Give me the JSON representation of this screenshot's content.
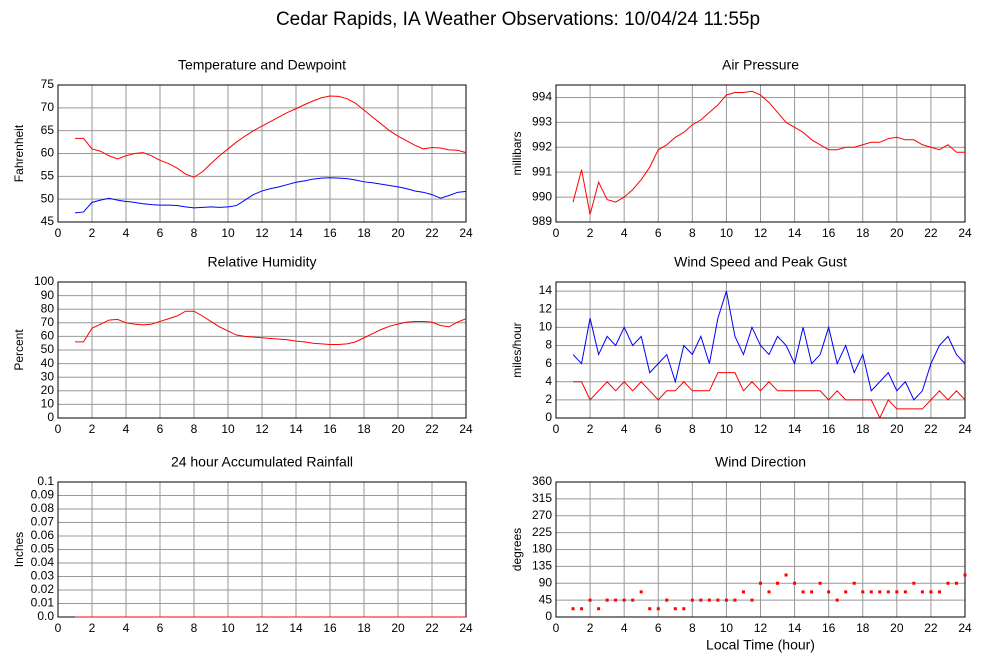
{
  "title": "Cedar Rapids, IA Weather Observations: 10/04/24 11:55p",
  "chart_data": [
    {
      "type": "line",
      "title": "Temperature and Dewpoint",
      "ylabel": "Fahrenheit",
      "x": [
        1,
        1.5,
        2,
        2.5,
        3,
        3.5,
        4,
        4.5,
        5,
        5.5,
        6,
        6.5,
        7,
        7.5,
        8,
        8.5,
        9,
        9.5,
        10,
        10.5,
        11,
        11.5,
        12,
        12.5,
        13,
        13.5,
        14,
        14.5,
        15,
        15.5,
        16,
        16.5,
        17,
        17.5,
        18,
        18.5,
        19,
        19.5,
        20,
        20.5,
        21,
        21.5,
        22,
        22.5,
        23,
        23.5,
        24
      ],
      "xlim": [
        0,
        24
      ],
      "xticks": [
        0,
        2,
        4,
        6,
        8,
        10,
        12,
        14,
        16,
        18,
        20,
        22,
        24
      ],
      "ylim": [
        45,
        75
      ],
      "yticks": [
        45,
        50,
        55,
        60,
        65,
        70,
        75
      ],
      "grid": true,
      "series": [
        {
          "color": "#ff0000",
          "values": [
            63.3,
            63.3,
            61,
            60.5,
            59.5,
            58.8,
            59.5,
            60,
            60.2,
            59.5,
            58.5,
            57.8,
            56.8,
            55.5,
            54.8,
            56,
            57.8,
            59.5,
            61,
            62.5,
            63.8,
            65,
            66,
            67,
            68,
            69,
            69.8,
            70.7,
            71.5,
            72.2,
            72.6,
            72.5,
            72,
            71,
            69.5,
            68,
            66.5,
            65,
            63.8,
            62.8,
            61.8,
            61,
            61.3,
            61.2,
            60.8,
            60.7,
            60.2
          ]
        },
        {
          "color": "#0000ff",
          "values": [
            47,
            47.2,
            49.3,
            49.8,
            50.2,
            49.8,
            49.5,
            49.3,
            49,
            48.8,
            48.7,
            48.7,
            48.6,
            48.3,
            48.1,
            48.2,
            48.3,
            48.2,
            48.3,
            48.6,
            49.8,
            51,
            51.8,
            52.3,
            52.7,
            53.2,
            53.7,
            54,
            54.4,
            54.6,
            54.7,
            54.6,
            54.5,
            54.2,
            53.8,
            53.6,
            53.3,
            53,
            52.7,
            52.3,
            51.8,
            51.5,
            51,
            50.2,
            50.8,
            51.5,
            51.7
          ]
        }
      ]
    },
    {
      "type": "line",
      "title": "Air Pressure",
      "ylabel": "millibars",
      "x": [
        1,
        1.5,
        2,
        2.5,
        3,
        3.5,
        4,
        4.5,
        5,
        5.5,
        6,
        6.5,
        7,
        7.5,
        8,
        8.5,
        9,
        9.5,
        10,
        10.5,
        11,
        11.5,
        12,
        12.5,
        13,
        13.5,
        14,
        14.5,
        15,
        15.5,
        16,
        16.5,
        17,
        17.5,
        18,
        18.5,
        19,
        19.5,
        20,
        20.5,
        21,
        21.5,
        22,
        22.5,
        23,
        23.5,
        24
      ],
      "xlim": [
        0,
        24
      ],
      "xticks": [
        0,
        2,
        4,
        6,
        8,
        10,
        12,
        14,
        16,
        18,
        20,
        22,
        24
      ],
      "ylim": [
        989,
        994.5
      ],
      "yticks": [
        989,
        990,
        991,
        992,
        993,
        994
      ],
      "grid": true,
      "series": [
        {
          "color": "#ff0000",
          "values": [
            989.8,
            991.1,
            989.3,
            990.6,
            989.9,
            989.8,
            990,
            990.3,
            990.7,
            991.2,
            991.9,
            992.1,
            992.4,
            992.6,
            992.9,
            993.1,
            993.4,
            993.7,
            994.1,
            994.2,
            994.2,
            994.25,
            994.1,
            993.8,
            993.4,
            993,
            992.8,
            992.6,
            992.3,
            992.1,
            991.9,
            991.9,
            992,
            992,
            992.1,
            992.2,
            992.2,
            992.35,
            992.4,
            992.3,
            992.3,
            992.1,
            992,
            991.9,
            992.1,
            991.8,
            991.8
          ]
        }
      ]
    },
    {
      "type": "line",
      "title": "Relative Humidity",
      "ylabel": "Percent",
      "x": [
        1,
        1.5,
        2,
        2.5,
        3,
        3.5,
        4,
        4.5,
        5,
        5.5,
        6,
        6.5,
        7,
        7.5,
        8,
        8.5,
        9,
        9.5,
        10,
        10.5,
        11,
        11.5,
        12,
        12.5,
        13,
        13.5,
        14,
        14.5,
        15,
        15.5,
        16,
        16.5,
        17,
        17.5,
        18,
        18.5,
        19,
        19.5,
        20,
        20.5,
        21,
        21.5,
        22,
        22.5,
        23,
        23.5,
        24
      ],
      "xlim": [
        0,
        24
      ],
      "xticks": [
        0,
        2,
        4,
        6,
        8,
        10,
        12,
        14,
        16,
        18,
        20,
        22,
        24
      ],
      "ylim": [
        0,
        100
      ],
      "yticks": [
        0,
        10,
        20,
        30,
        40,
        50,
        60,
        70,
        80,
        90,
        100
      ],
      "grid": true,
      "series": [
        {
          "color": "#ff0000",
          "values": [
            56,
            56,
            66,
            69,
            72,
            72.5,
            70,
            69,
            68.5,
            69,
            71,
            73,
            75,
            78.5,
            78.5,
            75,
            71,
            67,
            64,
            61,
            60,
            59.5,
            59,
            58.5,
            58,
            57.5,
            56.5,
            56,
            55,
            54.5,
            54,
            54,
            54.5,
            56,
            59,
            62,
            65,
            67.5,
            69,
            70.5,
            71,
            71,
            70.5,
            68,
            67,
            70.5,
            73
          ]
        }
      ]
    },
    {
      "type": "line",
      "title": "Wind Speed and Peak Gust",
      "ylabel": "miles/hour",
      "x": [
        1,
        1.5,
        2,
        2.5,
        3,
        3.5,
        4,
        4.5,
        5,
        5.5,
        6,
        6.5,
        7,
        7.5,
        8,
        8.5,
        9,
        9.5,
        10,
        10.5,
        11,
        11.5,
        12,
        12.5,
        13,
        13.5,
        14,
        14.5,
        15,
        15.5,
        16,
        16.5,
        17,
        17.5,
        18,
        18.5,
        19,
        19.5,
        20,
        20.5,
        21,
        21.5,
        22,
        22.5,
        23,
        23.5,
        24
      ],
      "xlim": [
        0,
        24
      ],
      "xticks": [
        0,
        2,
        4,
        6,
        8,
        10,
        12,
        14,
        16,
        18,
        20,
        22,
        24
      ],
      "ylim": [
        0,
        15
      ],
      "yticks": [
        0,
        2,
        4,
        6,
        8,
        10,
        12,
        14
      ],
      "grid": true,
      "series": [
        {
          "color": "#0000ff",
          "values": [
            7,
            6,
            11,
            7,
            9,
            8,
            10,
            8,
            9,
            5,
            6,
            7,
            4,
            8,
            7,
            9,
            6,
            11,
            14,
            9,
            7,
            10,
            8,
            7,
            9,
            8,
            6,
            10,
            6,
            7,
            10,
            6,
            8,
            5,
            7,
            3,
            4,
            5,
            3,
            4,
            2,
            3,
            6,
            8,
            9,
            7,
            6
          ]
        },
        {
          "color": "#ff0000",
          "values": [
            4,
            4,
            2,
            3,
            4,
            3,
            4,
            3,
            4,
            3,
            2,
            3,
            3,
            4,
            3,
            3,
            3,
            5,
            5,
            5,
            3,
            4,
            3,
            4,
            3,
            3,
            3,
            3,
            3,
            3,
            2,
            3,
            2,
            2,
            2,
            2,
            0,
            2,
            1,
            1,
            1,
            1,
            2,
            3,
            2,
            3,
            2
          ]
        }
      ]
    },
    {
      "type": "line",
      "title": "24 hour Accumulated Rainfall",
      "ylabel": "Inches",
      "x": [
        1,
        1.5,
        2,
        2.5,
        3,
        3.5,
        4,
        4.5,
        5,
        5.5,
        6,
        6.5,
        7,
        7.5,
        8,
        8.5,
        9,
        9.5,
        10,
        10.5,
        11,
        11.5,
        12,
        12.5,
        13,
        13.5,
        14,
        14.5,
        15,
        15.5,
        16,
        16.5,
        17,
        17.5,
        18,
        18.5,
        19,
        19.5,
        20,
        20.5,
        21,
        21.5,
        22,
        22.5,
        23,
        23.5,
        24
      ],
      "xlim": [
        0,
        24
      ],
      "xticks": [
        0,
        2,
        4,
        6,
        8,
        10,
        12,
        14,
        16,
        18,
        20,
        22,
        24
      ],
      "ylim": [
        0,
        0.1
      ],
      "yticks": [
        {
          "value": 0,
          "label": "0.0"
        },
        0.01,
        0.02,
        0.03,
        0.04,
        0.05,
        0.06,
        0.07,
        0.08,
        0.09,
        0.1
      ],
      "grid": true,
      "series": [
        {
          "color": "#ff0000",
          "values": [
            0,
            0,
            0,
            0,
            0,
            0,
            0,
            0,
            0,
            0,
            0,
            0,
            0,
            0,
            0,
            0,
            0,
            0,
            0,
            0,
            0,
            0,
            0,
            0,
            0,
            0,
            0,
            0,
            0,
            0,
            0,
            0,
            0,
            0,
            0,
            0,
            0,
            0,
            0,
            0,
            0,
            0,
            0,
            0,
            0,
            0,
            0
          ]
        }
      ]
    },
    {
      "type": "scatter",
      "title": "Wind Direction",
      "ylabel": "degrees",
      "xlabel": "Local Time (hour)",
      "x": [
        1,
        1.5,
        2,
        2.5,
        3,
        3.5,
        4,
        4.5,
        5,
        5.5,
        6,
        6.5,
        7,
        7.5,
        8,
        8.5,
        9,
        9.5,
        10,
        10.5,
        11,
        11.5,
        12,
        12.5,
        13,
        13.5,
        14,
        14.5,
        15,
        15.5,
        16,
        16.5,
        17,
        17.5,
        18,
        18.5,
        19,
        19.5,
        20,
        20.5,
        21,
        21.5,
        22,
        22.5,
        23,
        23.5,
        24
      ],
      "xlim": [
        0,
        24
      ],
      "xticks": [
        0,
        2,
        4,
        6,
        8,
        10,
        12,
        14,
        16,
        18,
        20,
        22,
        24
      ],
      "ylim": [
        0,
        360
      ],
      "yticks": [
        0,
        45,
        90,
        135,
        180,
        225,
        270,
        315,
        360
      ],
      "grid": true,
      "series": [
        {
          "color": "#ff0000",
          "values": [
            22,
            22,
            45,
            22,
            45,
            45,
            45,
            45,
            67,
            22,
            22,
            45,
            22,
            22,
            45,
            45,
            45,
            45,
            45,
            45,
            67,
            45,
            90,
            67,
            90,
            112,
            90,
            67,
            67,
            90,
            67,
            45,
            67,
            90,
            67,
            67,
            67,
            67,
            67,
            67,
            90,
            67,
            67,
            67,
            90,
            90,
            112
          ]
        }
      ]
    }
  ]
}
